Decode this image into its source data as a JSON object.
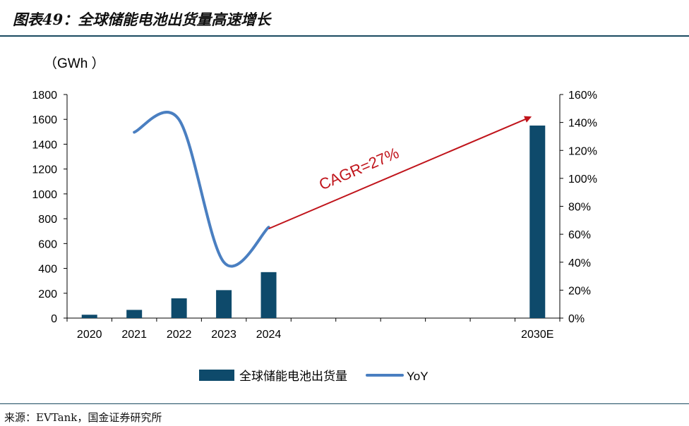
{
  "figure": {
    "title": "图表49：全球储能电池出货量高速增长",
    "source": "来源：EVTank，国金证券研究所"
  },
  "chart_data": {
    "type": "bar",
    "title": "全球储能电池出货量高速增长",
    "unit_label": "（GWh ）",
    "categories": [
      "2020",
      "2021",
      "2022",
      "2023",
      "2024",
      "2030E"
    ],
    "series": [
      {
        "name": "全球储能电池出货量",
        "type": "bar",
        "axis": "left",
        "values": [
          27,
          66,
          159,
          225,
          370,
          1550
        ]
      },
      {
        "name": "YoY",
        "type": "line",
        "axis": "right",
        "values": [
          null,
          133,
          142,
          40,
          65,
          null
        ]
      }
    ],
    "left_axis": {
      "min": 0,
      "max": 1800,
      "ticks": [
        0,
        200,
        400,
        600,
        800,
        1000,
        1200,
        1400,
        1600,
        1800
      ]
    },
    "right_axis": {
      "min": 0,
      "max": 160,
      "ticks": [
        0,
        20,
        40,
        60,
        80,
        100,
        120,
        140,
        160
      ],
      "tick_labels": [
        "0%",
        "20%",
        "40%",
        "60%",
        "80%",
        "100%",
        "120%",
        "140%",
        "160%"
      ]
    },
    "annotation": {
      "text": "CAGR=27%",
      "from_category": "2024",
      "to_category": "2030E"
    },
    "legend": {
      "position": "bottom"
    },
    "colors": {
      "bar": "#0e4a6b",
      "line": "#4a7fc1",
      "arrow": "#c0141b",
      "axis": "#000000"
    }
  }
}
